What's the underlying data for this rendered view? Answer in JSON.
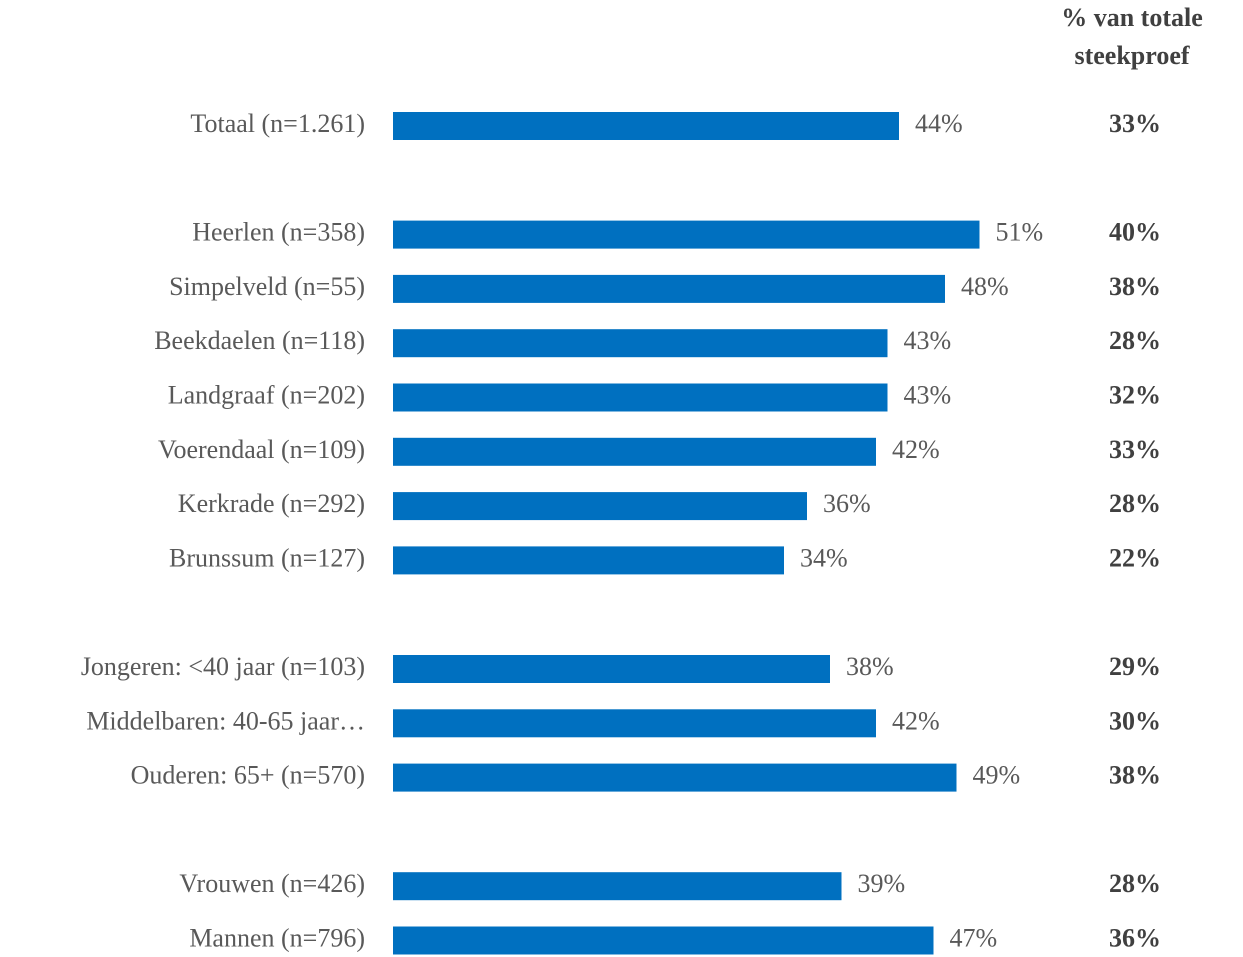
{
  "chart_data": {
    "type": "bar",
    "orientation": "horizontal",
    "color": "#0070c0",
    "categories": [
      "Totaal (n=1.261)",
      null,
      "Heerlen (n=358)",
      "Simpelveld (n=55)",
      "Beekdaelen (n=118)",
      "Landgraaf (n=202)",
      "Voerendaal (n=109)",
      "Kerkrade (n=292)",
      "Brunssum (n=127)",
      null,
      "Jongeren: <40 jaar (n=103)",
      "Middelbaren: 40-65 jaar…",
      "Ouderen: 65+ (n=570)",
      null,
      "Vrouwen (n=426)",
      "Mannen (n=796)"
    ],
    "values": [
      44,
      null,
      51,
      48,
      43,
      43,
      42,
      36,
      34,
      null,
      38,
      42,
      49,
      null,
      39,
      47
    ],
    "value_labels": [
      "44%",
      null,
      "51%",
      "48%",
      "43%",
      "43%",
      "42%",
      "36%",
      "34%",
      null,
      "38%",
      "42%",
      "49%",
      null,
      "39%",
      "47%"
    ],
    "column_header": [
      "% van totale",
      "steekproef"
    ],
    "column_values": [
      33,
      null,
      40,
      38,
      28,
      32,
      33,
      28,
      22,
      null,
      29,
      30,
      38,
      null,
      28,
      36
    ],
    "column_labels": [
      "33%",
      null,
      "40%",
      "38%",
      "28%",
      "32%",
      "33%",
      "28%",
      "22%",
      null,
      "29%",
      "30%",
      "38%",
      null,
      "28%",
      "36%"
    ]
  }
}
